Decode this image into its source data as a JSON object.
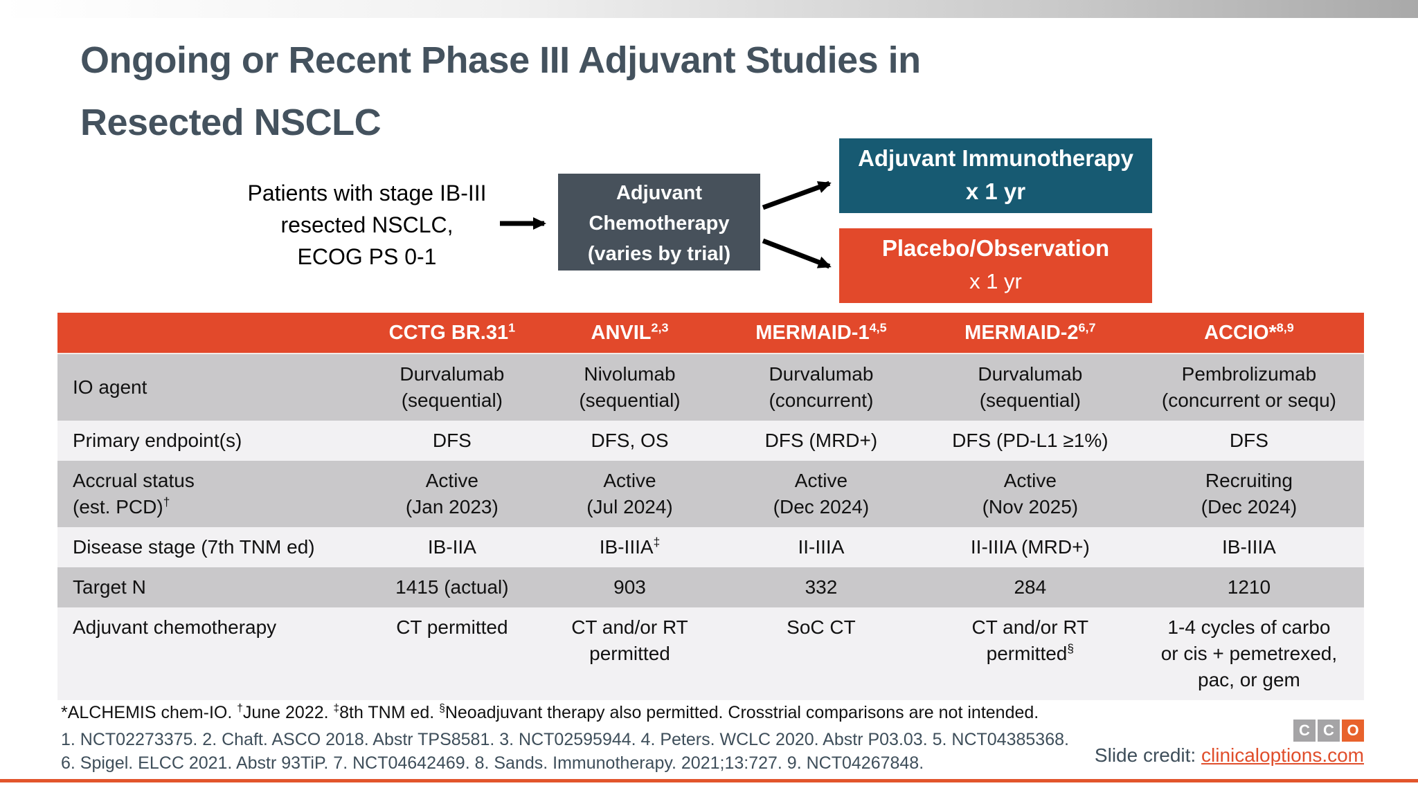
{
  "slide": {
    "title_line1": "Ongoing or Recent Phase III Adjuvant Studies in",
    "title_line2": "Resected NSCLC"
  },
  "flow": {
    "patients_text": "Patients with stage IB-III\nresected NSCLC,\nECOG PS 0-1",
    "chemo_box": {
      "line1": "Adjuvant",
      "line2": "Chemotherapy",
      "line3": "(varies by trial)"
    },
    "immunotherapy_box": {
      "line1": "Adjuvant Immunotherapy",
      "line2": "x 1 yr"
    },
    "placebo_box": {
      "line1": "Placebo/Observation",
      "line2": "x 1 yr"
    }
  },
  "table": {
    "headers": [
      {
        "label": "",
        "sup": ""
      },
      {
        "label": "CCTG BR.31",
        "sup": "1"
      },
      {
        "label": "ANVIL",
        "sup": "2,3"
      },
      {
        "label": "MERMAID-1",
        "sup": "4,5"
      },
      {
        "label": "MERMAID-2",
        "sup": "6,7"
      },
      {
        "label": "ACCIO*",
        "sup": "8,9"
      }
    ],
    "rows": [
      {
        "label": "IO agent",
        "cells": [
          "Durvalumab\n(sequential)",
          "Nivolumab\n(sequential)",
          "Durvalumab\n(concurrent)",
          "Durvalumab\n(sequential)",
          "Pembrolizumab\n(concurrent or sequ)"
        ]
      },
      {
        "label": "Primary endpoint(s)",
        "cells": [
          "DFS",
          "DFS, OS",
          "DFS (MRD+)",
          "DFS (PD-L1 ≥1%)",
          "DFS"
        ]
      },
      {
        "label": "Accrual status\n(est. PCD)†",
        "cells": [
          "Active\n(Jan 2023)",
          "Active\n(Jul 2024)",
          "Active\n(Dec 2024)",
          "Active\n(Nov 2025)",
          "Recruiting\n(Dec 2024)"
        ]
      },
      {
        "label": "Disease stage (7th TNM ed)",
        "cells": [
          "IB-IIA",
          "IB-IIIA‡",
          "II-IIIA",
          "II-IIIA (MRD+)",
          "IB-IIIA"
        ]
      },
      {
        "label": "Target N",
        "cells": [
          "1415 (actual)",
          "903",
          "332",
          "284",
          "1210"
        ]
      },
      {
        "label": "Adjuvant chemotherapy",
        "cells": [
          "CT permitted",
          "CT and/or RT\npermitted",
          "SoC CT",
          "CT and/or RT\npermitted§",
          "1-4 cycles of carbo\nor cis + pemetrexed,\npac, or gem"
        ]
      }
    ]
  },
  "footnote": {
    "segments": [
      {
        "sup": "",
        "text": "*ALCHEMIS chem-IO. "
      },
      {
        "sup": "†",
        "text": "June 2022. "
      },
      {
        "sup": "‡",
        "text": "8th TNM ed. "
      },
      {
        "sup": "§",
        "text": "Neoadjuvant therapy also permitted. Crosstrial comparisons are not intended."
      }
    ]
  },
  "references": {
    "line1": "1. NCT02273375. 2. Chaft. ASCO 2018. Abstr TPS8581. 3. NCT02595944. 4. Peters. WCLC 2020. Abstr P03.03. 5. NCT04385368.",
    "line2": "6. Spigel. ELCC 2021. Abstr 93TiP. 7. NCT04642469. 8. Sands. Immunotherapy. 2021;13:727. 9. NCT04267848."
  },
  "credit": {
    "label": "Slide credit: ",
    "link": "clinicaloptions.com"
  },
  "logo": {
    "letters": [
      "C",
      "C",
      "O"
    ]
  },
  "colors": {
    "accent_orange": "#E2492B",
    "teal_box": "#175A72",
    "dark_slate_box": "#47515B",
    "title_slate": "#44525E",
    "row_gray": "#C9C8CA",
    "row_light": "#F2F1F3",
    "link_orange": "#E04E2B",
    "logo_gray": "#A5A4A6",
    "logo_orange": "#E8622C"
  }
}
